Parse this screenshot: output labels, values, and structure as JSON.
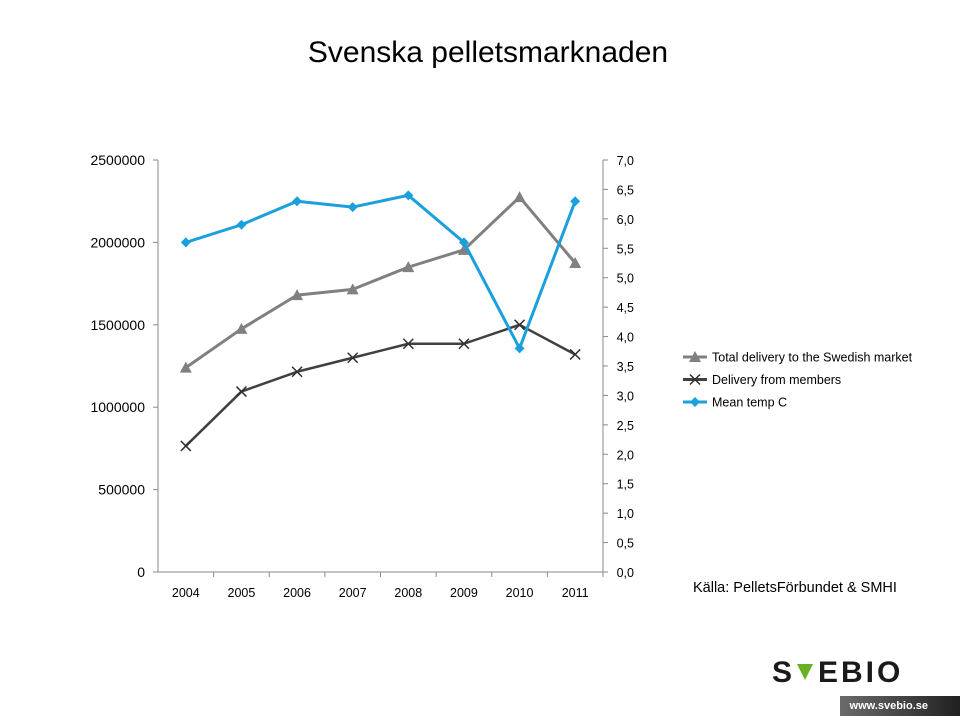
{
  "title": "Svenska pelletsmarknaden",
  "source": "Källa: PelletsFörbundet & SMHI",
  "logo_text": "SVEBIO",
  "website": "www.svebio.se",
  "colors": {
    "total": "#808080",
    "members": "#404040",
    "temp": "#1aa0dc",
    "logo_green": "#6ab023",
    "logo_dark": "#1a1a1a"
  },
  "chart_data": {
    "type": "line",
    "categories": [
      "2004",
      "2005",
      "2006",
      "2007",
      "2008",
      "2009",
      "2010",
      "2011"
    ],
    "y_left": {
      "ticks": [
        "0",
        "500000",
        "1000000",
        "1500000",
        "2000000",
        "2500000"
      ],
      "ylim": [
        0,
        2500000
      ]
    },
    "y_right": {
      "ticks": [
        "0,0",
        "0,5",
        "1,0",
        "1,5",
        "2,0",
        "2,5",
        "3,0",
        "3,5",
        "4,0",
        "4,5",
        "5,0",
        "5,5",
        "6,0",
        "6,5",
        "7,0"
      ],
      "ylim": [
        0,
        7.0
      ]
    },
    "grid": false,
    "legend_position": "right",
    "series": [
      {
        "name": "Total delivery to the Swedish market",
        "axis": "left",
        "marker": "triangle",
        "color_key": "total",
        "values": [
          1240000,
          1475000,
          1680000,
          1715000,
          1850000,
          1955000,
          2275000,
          1875000
        ]
      },
      {
        "name": "Delivery from  members",
        "axis": "left",
        "marker": "x",
        "color_key": "members",
        "values": [
          765000,
          1095000,
          1215000,
          1300000,
          1385000,
          1385000,
          1500000,
          1320000
        ]
      },
      {
        "name": "Mean temp C",
        "axis": "right",
        "marker": "diamond",
        "color_key": "temp",
        "values": [
          5.6,
          5.9,
          6.3,
          6.2,
          6.4,
          5.6,
          3.8,
          6.3
        ]
      }
    ]
  }
}
